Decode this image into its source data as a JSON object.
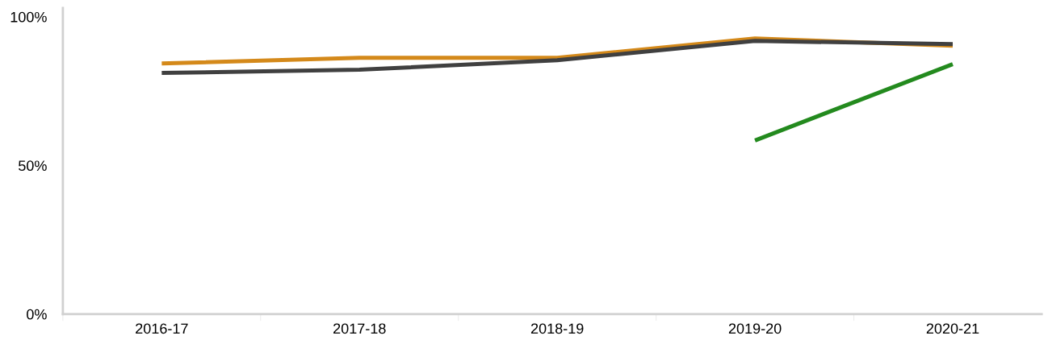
{
  "chart_data": {
    "type": "line",
    "categories": [
      "2016-17",
      "2017-18",
      "2018-19",
      "2019-20",
      "2020-21"
    ],
    "series": [
      {
        "color": "#d4891a",
        "values": [
          84.3,
          86.2,
          86.2,
          92.7,
          90.3
        ]
      },
      {
        "color": "#404040",
        "values": [
          81.1,
          82.2,
          85.4,
          91.9,
          90.8
        ]
      },
      {
        "color": "#238a1e",
        "values": [
          null,
          null,
          null,
          58.4,
          84.1
        ]
      }
    ],
    "ylim": [
      0,
      103
    ],
    "yticks": [
      {
        "value": 0,
        "label": "0%"
      },
      {
        "value": 50,
        "label": "50%"
      },
      {
        "value": 100,
        "label": "100%"
      }
    ],
    "grid": false,
    "legend": false,
    "marker": "none",
    "line_style": "solid"
  }
}
